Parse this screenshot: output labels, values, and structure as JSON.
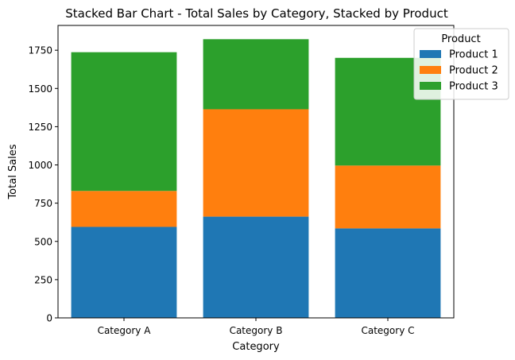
{
  "chart_data": {
    "type": "bar",
    "stacked": true,
    "title": "Stacked Bar Chart - Total Sales by Category, Stacked by Product",
    "xlabel": "Category",
    "ylabel": "Total Sales",
    "categories": [
      "Category A",
      "Category B",
      "Category C"
    ],
    "series": [
      {
        "name": "Product 1",
        "color": "#1f77b4",
        "values": [
          595,
          662,
          585
        ]
      },
      {
        "name": "Product 2",
        "color": "#ff7f0e",
        "values": [
          235,
          702,
          411
        ]
      },
      {
        "name": "Product 3",
        "color": "#2ca02c",
        "values": [
          907,
          458,
          704
        ]
      }
    ],
    "ylim": [
      0,
      1912
    ],
    "yticks": [
      0,
      250,
      500,
      750,
      1000,
      1250,
      1500,
      1750
    ],
    "legend": {
      "title": "Product",
      "placement": "top-right"
    },
    "grid": false
  }
}
